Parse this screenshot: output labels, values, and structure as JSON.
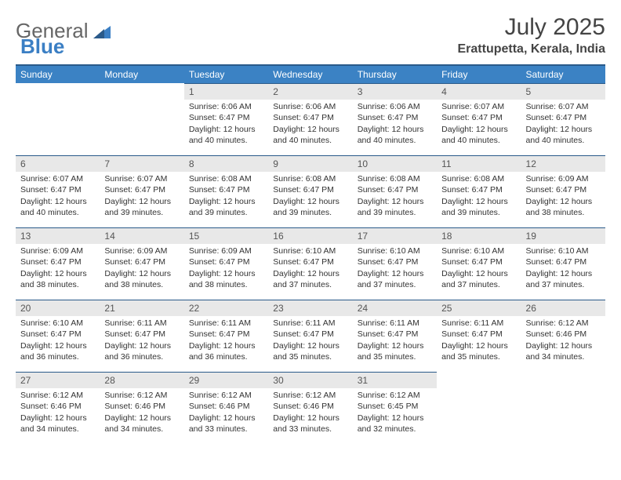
{
  "logo": {
    "text1": "General",
    "text2": "Blue"
  },
  "title": "July 2025",
  "location": "Erattupetta, Kerala, India",
  "colors": {
    "header_bg": "#3b82c4",
    "header_border": "#2a5a8a",
    "daynum_bg": "#e8e8e8",
    "text": "#333333",
    "logo_gray": "#666666",
    "logo_blue": "#3b7fc4"
  },
  "fonts": {
    "title_size": 30,
    "location_size": 16,
    "header_size": 12,
    "cell_size": 10.5
  },
  "weekdays": [
    "Sunday",
    "Monday",
    "Tuesday",
    "Wednesday",
    "Thursday",
    "Friday",
    "Saturday"
  ],
  "weeks": [
    [
      {
        "n": "",
        "t": ""
      },
      {
        "n": "",
        "t": ""
      },
      {
        "n": "1",
        "t": "Sunrise: 6:06 AM\nSunset: 6:47 PM\nDaylight: 12 hours and 40 minutes."
      },
      {
        "n": "2",
        "t": "Sunrise: 6:06 AM\nSunset: 6:47 PM\nDaylight: 12 hours and 40 minutes."
      },
      {
        "n": "3",
        "t": "Sunrise: 6:06 AM\nSunset: 6:47 PM\nDaylight: 12 hours and 40 minutes."
      },
      {
        "n": "4",
        "t": "Sunrise: 6:07 AM\nSunset: 6:47 PM\nDaylight: 12 hours and 40 minutes."
      },
      {
        "n": "5",
        "t": "Sunrise: 6:07 AM\nSunset: 6:47 PM\nDaylight: 12 hours and 40 minutes."
      }
    ],
    [
      {
        "n": "6",
        "t": "Sunrise: 6:07 AM\nSunset: 6:47 PM\nDaylight: 12 hours and 40 minutes."
      },
      {
        "n": "7",
        "t": "Sunrise: 6:07 AM\nSunset: 6:47 PM\nDaylight: 12 hours and 39 minutes."
      },
      {
        "n": "8",
        "t": "Sunrise: 6:08 AM\nSunset: 6:47 PM\nDaylight: 12 hours and 39 minutes."
      },
      {
        "n": "9",
        "t": "Sunrise: 6:08 AM\nSunset: 6:47 PM\nDaylight: 12 hours and 39 minutes."
      },
      {
        "n": "10",
        "t": "Sunrise: 6:08 AM\nSunset: 6:47 PM\nDaylight: 12 hours and 39 minutes."
      },
      {
        "n": "11",
        "t": "Sunrise: 6:08 AM\nSunset: 6:47 PM\nDaylight: 12 hours and 39 minutes."
      },
      {
        "n": "12",
        "t": "Sunrise: 6:09 AM\nSunset: 6:47 PM\nDaylight: 12 hours and 38 minutes."
      }
    ],
    [
      {
        "n": "13",
        "t": "Sunrise: 6:09 AM\nSunset: 6:47 PM\nDaylight: 12 hours and 38 minutes."
      },
      {
        "n": "14",
        "t": "Sunrise: 6:09 AM\nSunset: 6:47 PM\nDaylight: 12 hours and 38 minutes."
      },
      {
        "n": "15",
        "t": "Sunrise: 6:09 AM\nSunset: 6:47 PM\nDaylight: 12 hours and 38 minutes."
      },
      {
        "n": "16",
        "t": "Sunrise: 6:10 AM\nSunset: 6:47 PM\nDaylight: 12 hours and 37 minutes."
      },
      {
        "n": "17",
        "t": "Sunrise: 6:10 AM\nSunset: 6:47 PM\nDaylight: 12 hours and 37 minutes."
      },
      {
        "n": "18",
        "t": "Sunrise: 6:10 AM\nSunset: 6:47 PM\nDaylight: 12 hours and 37 minutes."
      },
      {
        "n": "19",
        "t": "Sunrise: 6:10 AM\nSunset: 6:47 PM\nDaylight: 12 hours and 37 minutes."
      }
    ],
    [
      {
        "n": "20",
        "t": "Sunrise: 6:10 AM\nSunset: 6:47 PM\nDaylight: 12 hours and 36 minutes."
      },
      {
        "n": "21",
        "t": "Sunrise: 6:11 AM\nSunset: 6:47 PM\nDaylight: 12 hours and 36 minutes."
      },
      {
        "n": "22",
        "t": "Sunrise: 6:11 AM\nSunset: 6:47 PM\nDaylight: 12 hours and 36 minutes."
      },
      {
        "n": "23",
        "t": "Sunrise: 6:11 AM\nSunset: 6:47 PM\nDaylight: 12 hours and 35 minutes."
      },
      {
        "n": "24",
        "t": "Sunrise: 6:11 AM\nSunset: 6:47 PM\nDaylight: 12 hours and 35 minutes."
      },
      {
        "n": "25",
        "t": "Sunrise: 6:11 AM\nSunset: 6:47 PM\nDaylight: 12 hours and 35 minutes."
      },
      {
        "n": "26",
        "t": "Sunrise: 6:12 AM\nSunset: 6:46 PM\nDaylight: 12 hours and 34 minutes."
      }
    ],
    [
      {
        "n": "27",
        "t": "Sunrise: 6:12 AM\nSunset: 6:46 PM\nDaylight: 12 hours and 34 minutes."
      },
      {
        "n": "28",
        "t": "Sunrise: 6:12 AM\nSunset: 6:46 PM\nDaylight: 12 hours and 34 minutes."
      },
      {
        "n": "29",
        "t": "Sunrise: 6:12 AM\nSunset: 6:46 PM\nDaylight: 12 hours and 33 minutes."
      },
      {
        "n": "30",
        "t": "Sunrise: 6:12 AM\nSunset: 6:46 PM\nDaylight: 12 hours and 33 minutes."
      },
      {
        "n": "31",
        "t": "Sunrise: 6:12 AM\nSunset: 6:45 PM\nDaylight: 12 hours and 32 minutes."
      },
      {
        "n": "",
        "t": ""
      },
      {
        "n": "",
        "t": ""
      }
    ]
  ]
}
